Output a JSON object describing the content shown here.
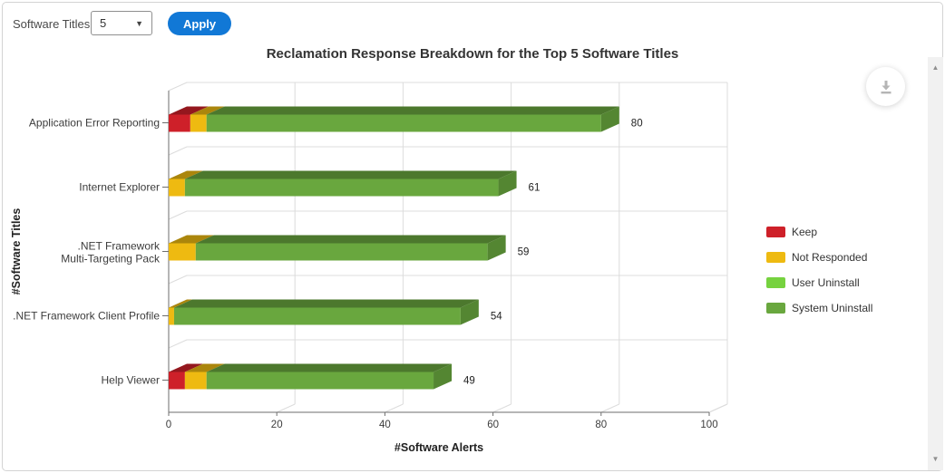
{
  "controls": {
    "label": "Software Titles:",
    "select_value": "5",
    "apply": "Apply",
    "apply_color": "#1178d6"
  },
  "icons": {
    "select_arrow": "▼",
    "scroll_up": "▲",
    "scroll_down": "▼"
  },
  "chart_data": {
    "type": "bar",
    "orientation": "horizontal",
    "stacked": true,
    "style": "3d",
    "title": "Reclamation Response Breakdown for the Top 5 Software Titles",
    "xlabel": "#Software Alerts",
    "ylabel": "#Software Titles",
    "xlim": [
      0,
      100
    ],
    "xticks": [
      0,
      20,
      40,
      60,
      80,
      100
    ],
    "grid": true,
    "legend_position": "right",
    "categories": [
      "Application Error Reporting",
      "Internet Explorer",
      ".NET Framework\nMulti-Targeting Pack",
      ".NET Framework Client Profile",
      "Help Viewer"
    ],
    "series": [
      {
        "name": "Keep",
        "color": "#CE2029",
        "values": [
          4,
          0,
          0,
          0,
          3
        ]
      },
      {
        "name": "Not Responded",
        "color": "#EEBA11",
        "values": [
          3,
          3,
          5,
          1,
          4
        ]
      },
      {
        "name": "User Uninstall",
        "color": "#76D23F",
        "values": [
          0,
          0,
          0,
          0,
          0
        ]
      },
      {
        "name": "System Uninstall",
        "color": "#69A73E",
        "values": [
          73,
          58,
          54,
          53,
          42
        ]
      }
    ],
    "totals": [
      80,
      61,
      59,
      54,
      49
    ]
  }
}
